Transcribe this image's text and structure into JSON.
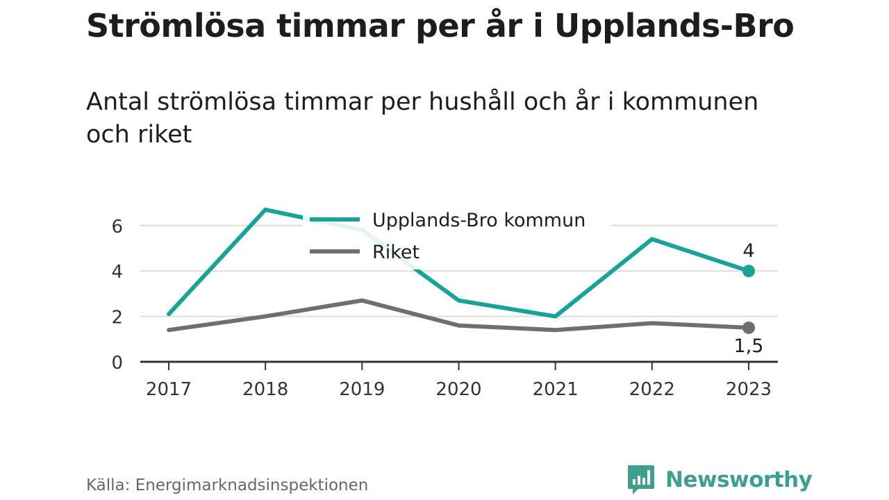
{
  "title": "Strömlösa timmar per år i Upplands-Bro",
  "subtitle": "Antal strömlösa timmar per hushåll och år i kommunen och riket",
  "source": "Källa: Energimarknadsinspektionen",
  "brand": {
    "name": "Newsworthy",
    "icon": "newsworthy-logo-icon"
  },
  "colors": {
    "series1": "#17a398",
    "series2": "#6e6e74",
    "grid": "#dcdcdc",
    "axis": "#333333",
    "brand": "#3f9f8e"
  },
  "chart_data": {
    "type": "line",
    "title": "Strömlösa timmar per år i Upplands-Bro",
    "subtitle": "Antal strömlösa timmar per hushåll och år i kommunen och riket",
    "x": [
      "2017",
      "2018",
      "2019",
      "2020",
      "2021",
      "2022",
      "2023"
    ],
    "yticks": [
      "0",
      "2",
      "4",
      "6"
    ],
    "ylim": [
      0,
      6.9
    ],
    "grid": true,
    "legend": "top-center",
    "series": [
      {
        "name": "Upplands-Bro kommun",
        "values": [
          2.1,
          6.7,
          5.8,
          2.7,
          2.0,
          5.4,
          4.0
        ],
        "end_label": "4"
      },
      {
        "name": "Riket",
        "values": [
          1.4,
          2.0,
          2.7,
          1.6,
          1.4,
          1.7,
          1.5
        ],
        "end_label": "1,5"
      }
    ]
  }
}
